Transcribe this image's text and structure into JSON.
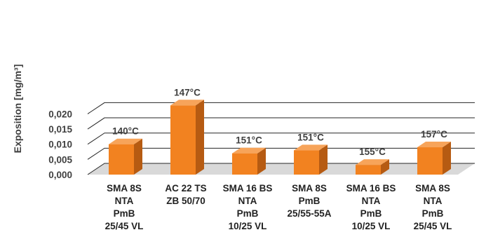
{
  "chart_data": {
    "type": "bar",
    "style": "3d-column",
    "ylabel": "Exposition [mg/m³]",
    "xlabel": "",
    "ylim": [
      0,
      0.025
    ],
    "yticks": [
      "0,000",
      "0,005",
      "0,010",
      "0,015",
      "0,020"
    ],
    "ytick_values": [
      0,
      0.005,
      0.01,
      0.015,
      0.02
    ],
    "grid": true,
    "legend": "none",
    "colors": {
      "bar": "#F28220",
      "bar_top": "#F7A45A",
      "bar_side": "#B65B12",
      "grid": "#262626",
      "floor": "#d9d9d9"
    },
    "categories": [
      [
        "SMA 8S",
        "NTA",
        "PmB",
        "25/45 VL"
      ],
      [
        "AC 22 TS",
        "ZB 50/70"
      ],
      [
        "SMA 16 BS",
        "NTA",
        "PmB",
        "10/25 VL"
      ],
      [
        "SMA 8S",
        "PmB",
        "25/55-55A"
      ],
      [
        "SMA 16 BS",
        "NTA",
        "PmB",
        "10/25 VL"
      ],
      [
        "SMA 8S",
        "NTA",
        "PmB",
        "25/45 VL"
      ]
    ],
    "values": [
      0.01,
      0.0228,
      0.007,
      0.008,
      0.0032,
      0.009
    ],
    "data_labels": [
      "140°C",
      "147°C",
      "151°C",
      "151°C",
      "155°C",
      "157°C"
    ]
  }
}
